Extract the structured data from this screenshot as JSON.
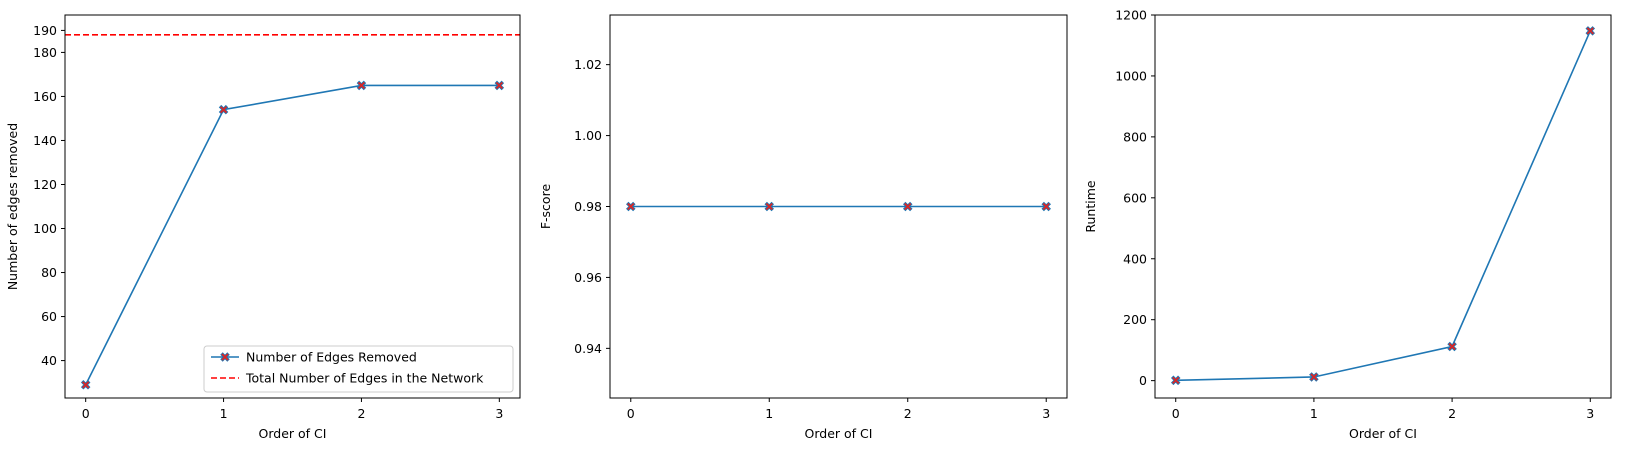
{
  "chart_data": [
    {
      "type": "line",
      "xlabel": "Order of CI",
      "ylabel": "Number of edges removed",
      "x": [
        0,
        1,
        2,
        3
      ],
      "xlim": [
        -0.15,
        3.15
      ],
      "ylim": [
        23,
        197
      ],
      "xticks": [
        "0",
        "1",
        "2",
        "3"
      ],
      "yticks": [
        40,
        60,
        80,
        100,
        120,
        140,
        160,
        180,
        190
      ],
      "series": [
        {
          "name": "Number of Edges Removed",
          "values": [
            29,
            154,
            165,
            165
          ],
          "color": "#1f77b4",
          "marker": "X",
          "marker_color": "#d62728"
        }
      ],
      "hlines": [
        {
          "name": "Total Number of Edges in the Network",
          "value": 188,
          "color": "#ff0000",
          "style": "dashed"
        }
      ],
      "legend": "lower-right",
      "grid": false
    },
    {
      "type": "line",
      "xlabel": "Order of CI",
      "ylabel": "F-score",
      "x": [
        0,
        1,
        2,
        3
      ],
      "xlim": [
        -0.15,
        3.15
      ],
      "ylim": [
        0.926,
        1.034
      ],
      "xticks": [
        "0",
        "1",
        "2",
        "3"
      ],
      "yticks": [
        "0.94",
        "0.96",
        "0.98",
        "1.00",
        "1.02"
      ],
      "series": [
        {
          "values": [
            0.98,
            0.98,
            0.98,
            0.98
          ],
          "color": "#1f77b4",
          "marker": "X",
          "marker_color": "#d62728"
        }
      ],
      "grid": false
    },
    {
      "type": "line",
      "xlabel": "Order of CI",
      "ylabel": "Runtime",
      "x": [
        0,
        1,
        2,
        3
      ],
      "xlim": [
        -0.15,
        3.15
      ],
      "ylim": [
        -57,
        1200
      ],
      "xticks": [
        "0",
        "1",
        "2",
        "3"
      ],
      "yticks": [
        "0",
        "200",
        "400",
        "600",
        "800",
        "1000",
        "1200"
      ],
      "series": [
        {
          "values": [
            1,
            12,
            112,
            1148
          ],
          "color": "#1f77b4",
          "marker": "X",
          "marker_color": "#d62728"
        }
      ],
      "grid": false
    }
  ]
}
